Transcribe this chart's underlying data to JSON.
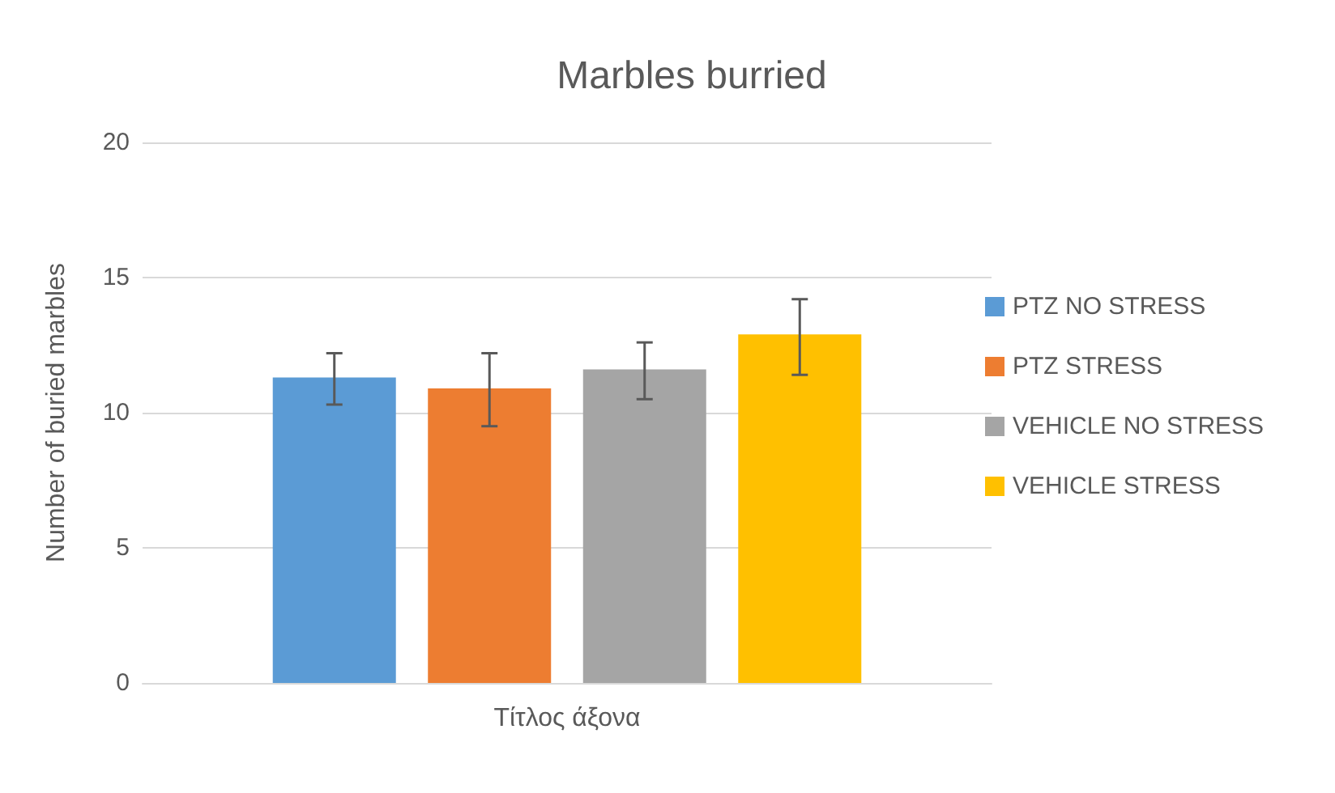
{
  "chart_data": {
    "type": "bar",
    "title": "Marbles burried",
    "xlabel": "Τίτλος άξονα",
    "ylabel": "Number of buried marbles",
    "categories": [
      null
    ],
    "series": [
      {
        "name": "PTZ NO STRESS",
        "color": "#5b9bd5",
        "values": [
          11.3
        ],
        "errors": [
          [
            10.3,
            12.2
          ]
        ]
      },
      {
        "name": "PTZ STRESS",
        "color": "#ed7d31",
        "values": [
          10.9
        ],
        "errors": [
          [
            9.5,
            12.2
          ]
        ]
      },
      {
        "name": "VEHICLE NO STRESS",
        "color": "#a5a5a5",
        "values": [
          11.6
        ],
        "errors": [
          [
            10.5,
            12.6
          ]
        ]
      },
      {
        "name": "VEHICLE STRESS",
        "color": "#ffc000",
        "values": [
          12.9
        ],
        "errors": [
          [
            11.4,
            14.2
          ]
        ]
      }
    ],
    "ylim": [
      0,
      20
    ],
    "yticks": [
      0,
      5,
      10,
      15,
      20
    ],
    "grid": "y",
    "legend": "right"
  }
}
